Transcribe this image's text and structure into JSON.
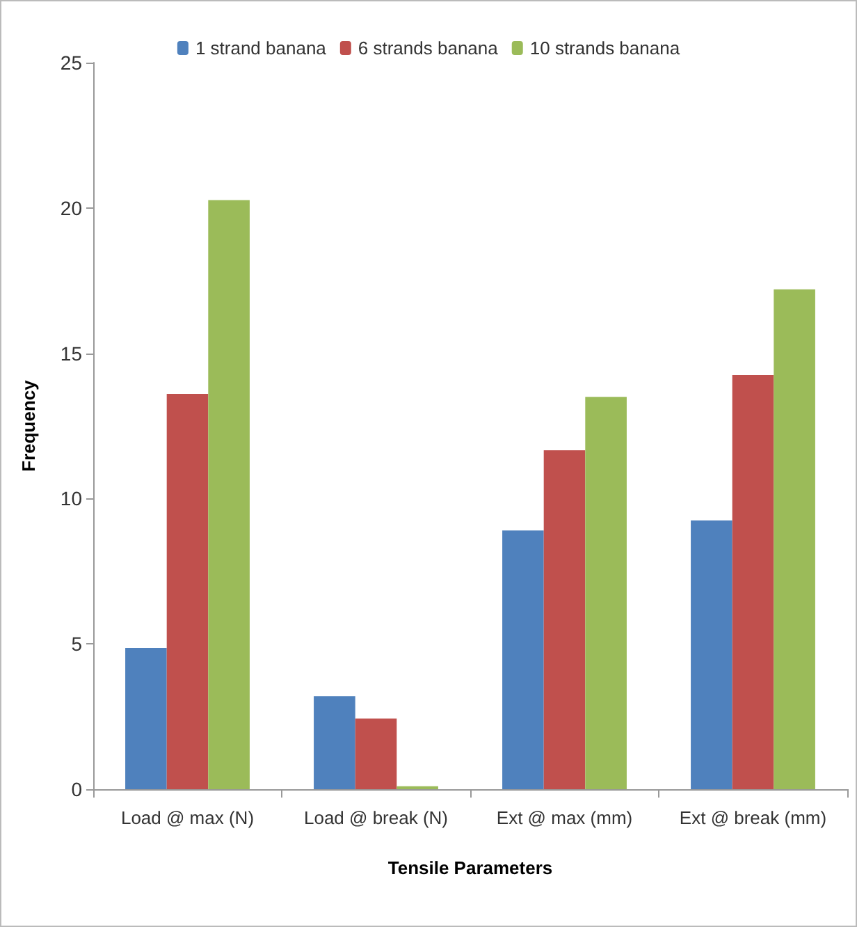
{
  "chart_data": {
    "type": "bar",
    "xlabel": "Tensile Parameters",
    "ylabel": "Frequency",
    "categories": [
      "Load @ max (N)",
      "Load @ break (N)",
      "Ext @ max (mm)",
      "Ext @ break (mm)"
    ],
    "series": [
      {
        "name": "1 strand banana",
        "color": "#4f81bd",
        "values": [
          4.86,
          3.2,
          8.9,
          9.25
        ]
      },
      {
        "name": "6 strands banana",
        "color": "#c0504d",
        "values": [
          13.6,
          2.43,
          11.66,
          14.25
        ]
      },
      {
        "name": "10 strands banana",
        "color": "#9bbb59",
        "values": [
          20.27,
          0.1,
          13.5,
          17.2
        ]
      }
    ],
    "ylim": [
      0,
      25
    ],
    "yticks": [
      0,
      5,
      10,
      15,
      20,
      25
    ],
    "grid": false,
    "legend": "top"
  }
}
